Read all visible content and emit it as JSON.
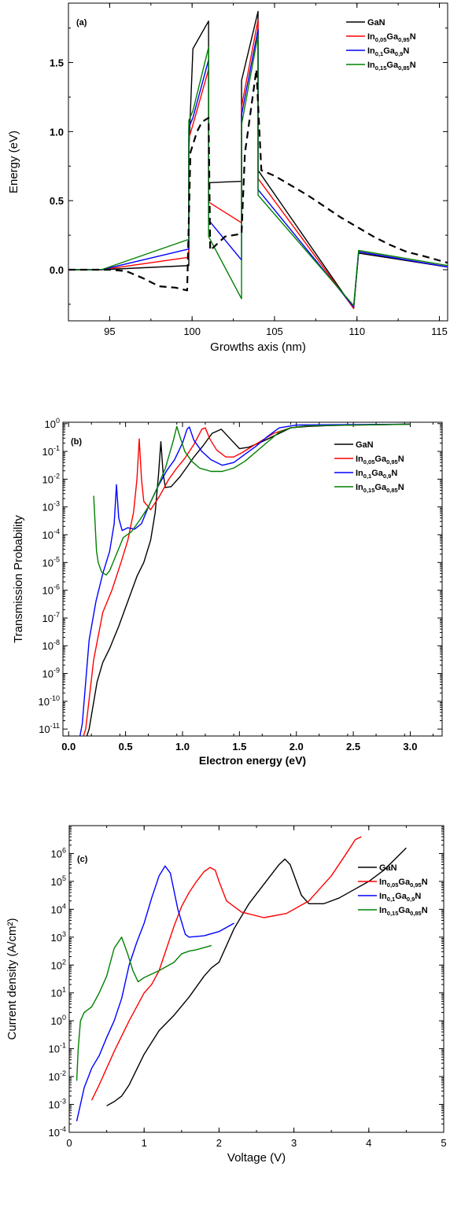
{
  "colors": {
    "GaN": "#000000",
    "In005": "#ff0000",
    "In01": "#0000ff",
    "In015": "#008000"
  },
  "legend_names": [
    "GaN",
    "In0.05Ga0.95N",
    "In0.1Ga0.9N",
    "In0.15Ga0.85N"
  ],
  "chart_data": [
    {
      "type": "line",
      "panel_label": "(a)",
      "xlabel": "Growths axis (nm)",
      "ylabel": "Energy (eV)",
      "xlim": [
        92.5,
        115.5
      ],
      "ylim": [
        -0.37,
        1.93
      ],
      "xticks": [
        95,
        100,
        105,
        110,
        115
      ],
      "yticks": [
        0.0,
        0.5,
        1.0,
        1.5
      ],
      "xtick_labels": [
        "95",
        "100",
        "105",
        "110",
        "115"
      ],
      "ytick_labels": [
        "0.0",
        "0.5",
        "1.0",
        "1.5"
      ],
      "legend_position": "top-right",
      "series": [
        {
          "name": "GaN",
          "color_key": "GaN",
          "x": [
            92.5,
            94.5,
            99.8,
            99.8,
            100.05,
            101.0,
            101.0,
            103.0,
            103.0,
            104.0,
            104.0,
            109.8,
            110.1,
            115.5
          ],
          "y": [
            0,
            0,
            0.03,
            0.85,
            1.6,
            1.8,
            0.63,
            0.64,
            1.37,
            1.87,
            0.72,
            -0.28,
            0.12,
            0.02
          ]
        },
        {
          "name": "In0.05Ga0.95N",
          "color_key": "In005",
          "x": [
            92.5,
            94.5,
            99.8,
            99.8,
            100.05,
            101.0,
            101.0,
            103.0,
            103.0,
            104.0,
            104.0,
            109.8,
            110.1,
            115.5
          ],
          "y": [
            0,
            0,
            0.09,
            0.95,
            1.05,
            1.45,
            0.49,
            0.34,
            1.18,
            1.81,
            0.66,
            -0.28,
            0.13,
            0.02
          ]
        },
        {
          "name": "In0.1Ga0.9N",
          "color_key": "In01",
          "x": [
            92.5,
            94.5,
            99.8,
            99.8,
            100.05,
            101.0,
            101.0,
            103.0,
            103.0,
            104.0,
            104.0,
            109.8,
            110.1,
            115.5
          ],
          "y": [
            0,
            0,
            0.15,
            1.03,
            1.1,
            1.52,
            0.36,
            0.07,
            1.12,
            1.74,
            0.58,
            -0.27,
            0.13,
            0.02
          ]
        },
        {
          "name": "In0.15Ga0.85N",
          "color_key": "In015",
          "x": [
            92.5,
            94.5,
            99.8,
            99.8,
            100.05,
            101.0,
            101.0,
            103.0,
            103.0,
            104.0,
            104.0,
            109.8,
            110.1,
            115.5
          ],
          "y": [
            0,
            0,
            0.22,
            1.08,
            1.15,
            1.61,
            0.24,
            -0.21,
            1.05,
            1.7,
            0.54,
            -0.26,
            0.14,
            0.03
          ]
        },
        {
          "color_key": "GaN",
          "dashed": true,
          "x": [
            92.5,
            94.5,
            95.0,
            96.0,
            97.0,
            98.0,
            99.0,
            99.7,
            99.9,
            100.3,
            100.6,
            101.0,
            101.1,
            102.0,
            103.0,
            103.2,
            103.5,
            103.9,
            104.2,
            105.0,
            106.0,
            107.0,
            108.0,
            109.0,
            110.0,
            111.0,
            112.0,
            113.0,
            114.0,
            115.5
          ],
          "y": [
            0,
            0,
            0.0,
            -0.01,
            -0.06,
            -0.12,
            -0.13,
            -0.15,
            0.85,
            1.0,
            1.07,
            1.1,
            0.14,
            0.24,
            0.26,
            0.84,
            1.1,
            1.45,
            0.72,
            0.68,
            0.61,
            0.54,
            0.46,
            0.38,
            0.31,
            0.24,
            0.18,
            0.13,
            0.1,
            0.05
          ]
        }
      ]
    },
    {
      "type": "line",
      "panel_label": "(b)",
      "xlabel": "Electron energy (eV)",
      "ylabel": "Transmission Probability",
      "xlim": [
        -0.05,
        3.28
      ],
      "ylog": [
        -11.25,
        0.05
      ],
      "xticks": [
        0.0,
        0.5,
        1.0,
        1.5,
        2.0,
        2.5,
        3.0
      ],
      "xtick_labels": [
        "0.0",
        "0.5",
        "1.0",
        "1.5",
        "2.0",
        "2.5",
        "3.0"
      ],
      "yticks_exp": [
        -11,
        -10,
        -9,
        -8,
        -7,
        -6,
        -5,
        -4,
        -3,
        -2,
        -1,
        0
      ],
      "legend_position": "right",
      "series": [
        {
          "name": "GaN",
          "color_key": "GaN",
          "x": [
            0.16,
            0.18,
            0.25,
            0.3,
            0.36,
            0.44,
            0.52,
            0.6,
            0.66,
            0.72,
            0.76,
            0.79,
            0.81,
            0.83,
            0.85,
            0.9,
            0.98,
            1.05,
            1.1,
            1.18,
            1.26,
            1.34,
            1.42,
            1.5,
            1.58,
            1.66,
            1.75,
            1.85,
            1.95,
            2.1,
            2.4,
            3.0
          ],
          "logy": [
            -11.25,
            -11.0,
            -9.3,
            -8.6,
            -8.1,
            -7.3,
            -6.4,
            -5.5,
            -5.0,
            -4.2,
            -3.2,
            -1.8,
            -0.65,
            -1.8,
            -2.3,
            -2.27,
            -1.9,
            -1.5,
            -1.2,
            -0.8,
            -0.35,
            -0.2,
            -0.55,
            -0.9,
            -0.85,
            -0.72,
            -0.55,
            -0.35,
            -0.15,
            -0.1,
            -0.05,
            -0.02
          ]
        },
        {
          "name": "In0.05Ga0.95N",
          "color_key": "In005",
          "x": [
            0.13,
            0.15,
            0.22,
            0.3,
            0.38,
            0.46,
            0.52,
            0.57,
            0.6,
            0.62,
            0.64,
            0.66,
            0.72,
            0.8,
            0.88,
            0.95,
            1.02,
            1.1,
            1.17,
            1.2,
            1.24,
            1.3,
            1.38,
            1.45,
            1.52,
            1.6,
            1.7,
            1.8,
            1.95,
            2.1,
            3.0
          ],
          "logy": [
            -11.25,
            -11.0,
            -8.5,
            -6.8,
            -6.0,
            -5.0,
            -4.2,
            -3.2,
            -2.0,
            -0.55,
            -2.0,
            -2.8,
            -3.1,
            -2.6,
            -2.0,
            -1.6,
            -1.25,
            -0.75,
            -0.2,
            -0.15,
            -0.55,
            -0.95,
            -1.2,
            -1.2,
            -1.05,
            -0.85,
            -0.6,
            -0.35,
            -0.15,
            -0.08,
            -0.02
          ]
        },
        {
          "name": "In0.1Ga0.9N",
          "color_key": "In01",
          "x": [
            0.1,
            0.12,
            0.18,
            0.24,
            0.3,
            0.36,
            0.4,
            0.42,
            0.44,
            0.47,
            0.52,
            0.58,
            0.64,
            0.7,
            0.78,
            0.86,
            0.93,
            1.0,
            1.04,
            1.06,
            1.1,
            1.17,
            1.25,
            1.35,
            1.45,
            1.55,
            1.65,
            1.75,
            1.85,
            2.0,
            3.0
          ],
          "logy": [
            -11.25,
            -10.8,
            -7.8,
            -6.4,
            -5.4,
            -4.6,
            -3.6,
            -2.2,
            -3.4,
            -3.85,
            -3.75,
            -3.8,
            -3.6,
            -3.0,
            -2.3,
            -1.7,
            -1.3,
            -0.7,
            -0.2,
            -0.12,
            -0.6,
            -1.0,
            -1.3,
            -1.5,
            -1.4,
            -1.1,
            -0.8,
            -0.45,
            -0.15,
            -0.05,
            -0.02
          ]
        },
        {
          "name": "In0.15Ga0.85N",
          "color_key": "In015",
          "x": [
            0.22,
            0.235,
            0.245,
            0.26,
            0.29,
            0.33,
            0.36,
            0.42,
            0.48,
            0.55,
            0.62,
            0.7,
            0.78,
            0.85,
            0.92,
            0.95,
            0.98,
            1.02,
            1.08,
            1.15,
            1.25,
            1.35,
            1.45,
            1.55,
            1.65,
            1.75,
            1.85,
            1.95,
            2.1,
            3.0
          ],
          "logy": [
            -2.6,
            -3.8,
            -4.6,
            -5.0,
            -5.35,
            -5.45,
            -5.3,
            -4.7,
            -4.1,
            -3.9,
            -3.5,
            -3.0,
            -2.3,
            -1.6,
            -0.6,
            -0.1,
            -0.5,
            -1.0,
            -1.35,
            -1.6,
            -1.72,
            -1.72,
            -1.6,
            -1.35,
            -1.0,
            -0.65,
            -0.3,
            -0.15,
            -0.08,
            -0.02
          ]
        }
      ]
    },
    {
      "type": "line",
      "panel_label": "(c)",
      "xlabel": "Voltage (V)",
      "ylabel": "Current density (A/cm²)",
      "xlim": [
        0,
        5
      ],
      "ylog": [
        -4,
        7
      ],
      "xticks": [
        0,
        1,
        2,
        3,
        4,
        5
      ],
      "xtick_labels": [
        "0",
        "1",
        "2",
        "3",
        "4",
        "5"
      ],
      "yticks_exp": [
        -4,
        -3,
        -2,
        -1,
        0,
        1,
        2,
        3,
        4,
        5,
        6
      ],
      "legend_position": "right",
      "series": [
        {
          "name": "GaN",
          "color_key": "GaN",
          "x": [
            0.5,
            0.6,
            0.7,
            0.8,
            1.0,
            1.2,
            1.4,
            1.6,
            1.8,
            1.9,
            2.0,
            2.2,
            2.4,
            2.6,
            2.8,
            2.88,
            2.95,
            3.1,
            3.2,
            3.4,
            3.6,
            3.8,
            4.0,
            4.2,
            4.5
          ],
          "logy": [
            -3.05,
            -2.9,
            -2.7,
            -2.3,
            -1.2,
            -0.35,
            0.2,
            0.85,
            1.6,
            1.9,
            2.1,
            3.3,
            4.2,
            4.9,
            5.6,
            5.8,
            5.6,
            4.5,
            4.2,
            4.2,
            4.4,
            4.7,
            5.0,
            5.4,
            6.2
          ]
        },
        {
          "name": "In0.05Ga0.95N",
          "color_key": "In005",
          "x": [
            0.3,
            0.4,
            0.5,
            0.6,
            0.8,
            1.0,
            1.1,
            1.2,
            1.3,
            1.4,
            1.5,
            1.6,
            1.7,
            1.8,
            1.88,
            1.95,
            2.0,
            2.1,
            2.3,
            2.6,
            2.9,
            3.2,
            3.5,
            3.7,
            3.82,
            3.9
          ],
          "logy": [
            -2.85,
            -2.3,
            -1.7,
            -1.1,
            0.0,
            1.0,
            1.3,
            1.8,
            2.6,
            3.4,
            4.1,
            4.6,
            5.0,
            5.35,
            5.5,
            5.4,
            5.0,
            4.3,
            3.9,
            3.7,
            3.85,
            4.3,
            5.2,
            6.0,
            6.5,
            6.6
          ]
        },
        {
          "name": "In0.1Ga0.9N",
          "color_key": "In01",
          "x": [
            0.1,
            0.2,
            0.3,
            0.4,
            0.5,
            0.6,
            0.7,
            0.8,
            0.9,
            1.0,
            1.1,
            1.2,
            1.28,
            1.35,
            1.45,
            1.55,
            1.6,
            1.8,
            2.0,
            2.2
          ],
          "logy": [
            -3.6,
            -2.4,
            -1.7,
            -1.25,
            -0.6,
            0.0,
            0.8,
            2.0,
            2.8,
            3.5,
            4.4,
            5.2,
            5.55,
            5.3,
            4.0,
            3.1,
            3.0,
            3.05,
            3.2,
            3.5
          ]
        },
        {
          "name": "In0.15Ga0.85N",
          "color_key": "In015",
          "x": [
            0.1,
            0.12,
            0.15,
            0.2,
            0.3,
            0.4,
            0.5,
            0.6,
            0.7,
            0.78,
            0.85,
            0.92,
            1.0,
            1.2,
            1.4,
            1.5,
            1.6,
            1.7,
            1.9
          ],
          "logy": [
            -2.15,
            -1.0,
            0.0,
            0.3,
            0.5,
            1.0,
            1.6,
            2.6,
            3.0,
            2.4,
            1.8,
            1.4,
            1.55,
            1.8,
            2.1,
            2.4,
            2.5,
            2.55,
            2.7
          ]
        }
      ]
    }
  ]
}
